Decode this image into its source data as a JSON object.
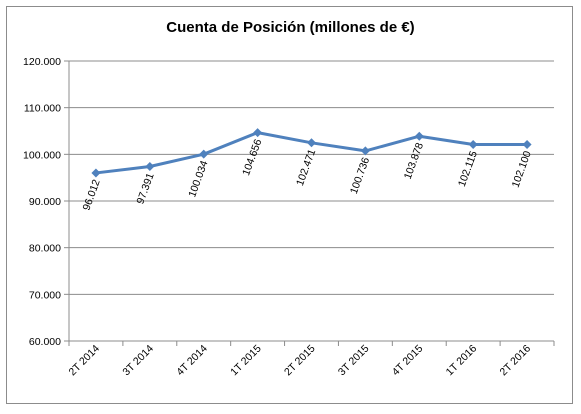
{
  "chart_data": {
    "type": "line",
    "title": "Cuenta de Posición (millones de €)",
    "categories": [
      "2T 2014",
      "3T 2014",
      "4T 2014",
      "1T 2015",
      "2T 2015",
      "3T 2015",
      "4T 2015",
      "1T 2016",
      "2T 2016"
    ],
    "series": [
      {
        "values": [
          96012,
          97391,
          100034,
          104656,
          102471,
          100736,
          103878,
          102115,
          102100
        ],
        "labels": [
          "96.012",
          "97.391",
          "100.034",
          "104.656",
          "102.471",
          "100.736",
          "103.878",
          "102.115",
          "102.100"
        ]
      }
    ],
    "y_ticks": [
      "60.000",
      "70.000",
      "80.000",
      "90.000",
      "100.000",
      "110.000",
      "120.000"
    ],
    "ylim": [
      60000,
      120000
    ],
    "grid": true,
    "legend": "none",
    "line_color": "#4f81bd",
    "grid_color": "#8c8c8c"
  }
}
